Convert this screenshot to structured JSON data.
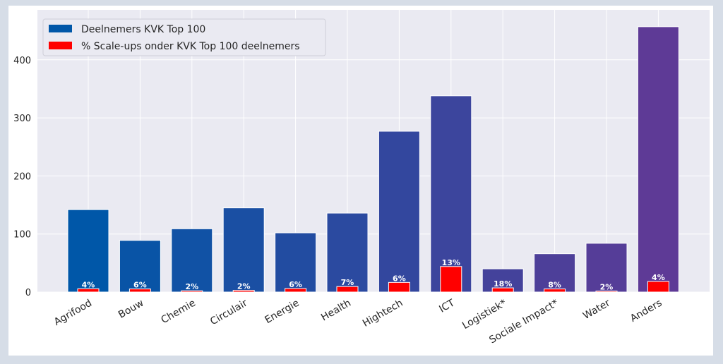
{
  "chart_data": {
    "type": "bar",
    "categories": [
      "Agrifood",
      "Bouw",
      "Chemie",
      "Circulair",
      "Energie",
      "Health",
      "Hightech",
      "ICT",
      "Logistiek*",
      "Sociale Impact*",
      "Water",
      "Anders"
    ],
    "series": [
      {
        "name": "Deelnemers KVK Top 100",
        "values": [
          142,
          89,
          109,
          145,
          102,
          136,
          277,
          338,
          40,
          66,
          84,
          457
        ]
      },
      {
        "name": "% Scale-ups onder KVK Top 100 deelnemers",
        "values": [
          5.7,
          5.3,
          2.2,
          2.9,
          6.1,
          9.5,
          16.6,
          44,
          7.2,
          5.3,
          1.7,
          18.3
        ]
      }
    ],
    "data_labels": [
      "4%",
      "6%",
      "2%",
      "2%",
      "6%",
      "7%",
      "6%",
      "13%",
      "18%",
      "8%",
      "2%",
      "4%"
    ],
    "yticks": [
      0,
      100,
      200,
      300,
      400
    ],
    "ylim": [
      0,
      486
    ],
    "grid": true,
    "legend": "top-left",
    "colors": {
      "bar_gradient_start": "#0057a8",
      "bar_gradient_end": "#5e3a96",
      "scaleups": "#ff0000",
      "legend_blue": "#0057a8",
      "background": "#eaeaf2"
    }
  }
}
